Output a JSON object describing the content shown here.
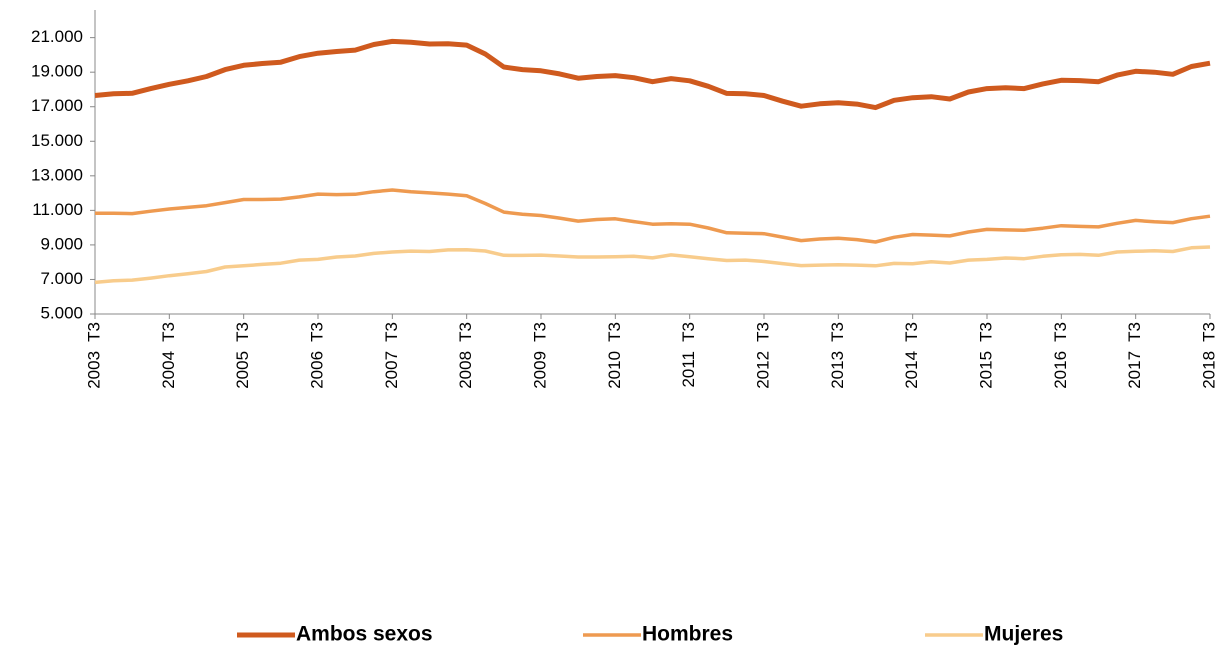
{
  "chart_data": {
    "type": "line",
    "categories": [
      "2003  T3",
      null,
      null,
      null,
      "2004  T3",
      null,
      null,
      null,
      "2005  T3",
      null,
      null,
      null,
      "2006  T3",
      null,
      null,
      null,
      "2007  T3",
      null,
      null,
      null,
      "2008  T3",
      null,
      null,
      null,
      "2009  T3",
      null,
      null,
      null,
      "2010  T3",
      null,
      null,
      null,
      "2011  T3",
      null,
      null,
      null,
      "2012  T3",
      null,
      null,
      null,
      "2013  T3",
      null,
      null,
      null,
      "2014  T3",
      null,
      null,
      null,
      "2015  T3",
      null,
      null,
      null,
      "2016  T3",
      null,
      null,
      null,
      "2017  T3",
      null,
      null,
      null,
      "2018  T3"
    ],
    "series": [
      {
        "name": "Ambos sexos",
        "color": "#cf5a1e",
        "values": [
          17650,
          17750,
          17780,
          18050,
          18300,
          18500,
          18750,
          19150,
          19400,
          19500,
          19580,
          19900,
          20100,
          20200,
          20280,
          20600,
          20780,
          20730,
          20630,
          20650,
          20570,
          20050,
          19300,
          19150,
          19080,
          18900,
          18650,
          18750,
          18800,
          18680,
          18450,
          18630,
          18500,
          18180,
          17770,
          17750,
          17650,
          17320,
          17030,
          17170,
          17230,
          17150,
          16950,
          17370,
          17520,
          17580,
          17450,
          17850,
          18050,
          18100,
          18050,
          18320,
          18530,
          18510,
          18450,
          18830,
          19050,
          19000,
          18880,
          19330,
          19520
        ]
      },
      {
        "name": "Hombres",
        "color": "#ee9a50",
        "values": [
          10830,
          10830,
          10810,
          10950,
          11080,
          11170,
          11270,
          11450,
          11630,
          11630,
          11650,
          11780,
          11940,
          11910,
          11930,
          12080,
          12180,
          12080,
          12010,
          11940,
          11850,
          11400,
          10900,
          10780,
          10700,
          10550,
          10380,
          10470,
          10510,
          10350,
          10200,
          10230,
          10200,
          9980,
          9700,
          9670,
          9650,
          9450,
          9250,
          9340,
          9390,
          9310,
          9170,
          9440,
          9600,
          9570,
          9520,
          9750,
          9900,
          9870,
          9850,
          9970,
          10110,
          10070,
          10040,
          10250,
          10420,
          10340,
          10290,
          10520,
          10660
        ]
      },
      {
        "name": "Mujeres",
        "color": "#f8cc8c",
        "values": [
          6830,
          6920,
          6960,
          7080,
          7220,
          7330,
          7460,
          7720,
          7790,
          7870,
          7940,
          8120,
          8160,
          8300,
          8360,
          8510,
          8590,
          8640,
          8620,
          8710,
          8720,
          8650,
          8400,
          8390,
          8410,
          8360,
          8300,
          8300,
          8320,
          8340,
          8250,
          8420,
          8320,
          8200,
          8100,
          8120,
          8040,
          7920,
          7800,
          7830,
          7850,
          7830,
          7790,
          7930,
          7910,
          8020,
          7950,
          8120,
          8160,
          8240,
          8200,
          8340,
          8430,
          8450,
          8400,
          8590,
          8630,
          8660,
          8620,
          8830,
          8880
        ]
      }
    ],
    "ylim": [
      5000,
      22600
    ],
    "yticks": [
      {
        "value": 5000,
        "label": "5.000"
      },
      {
        "value": 7000,
        "label": "7.000"
      },
      {
        "value": 9000,
        "label": "9.000"
      },
      {
        "value": 11000,
        "label": "11.000"
      },
      {
        "value": 13000,
        "label": "13.000"
      },
      {
        "value": 15000,
        "label": "15.000"
      },
      {
        "value": 17000,
        "label": "17.000"
      },
      {
        "value": 19000,
        "label": "19.000"
      },
      {
        "value": 21000,
        "label": "21.000"
      }
    ],
    "grid": false,
    "legend": "bottom"
  }
}
